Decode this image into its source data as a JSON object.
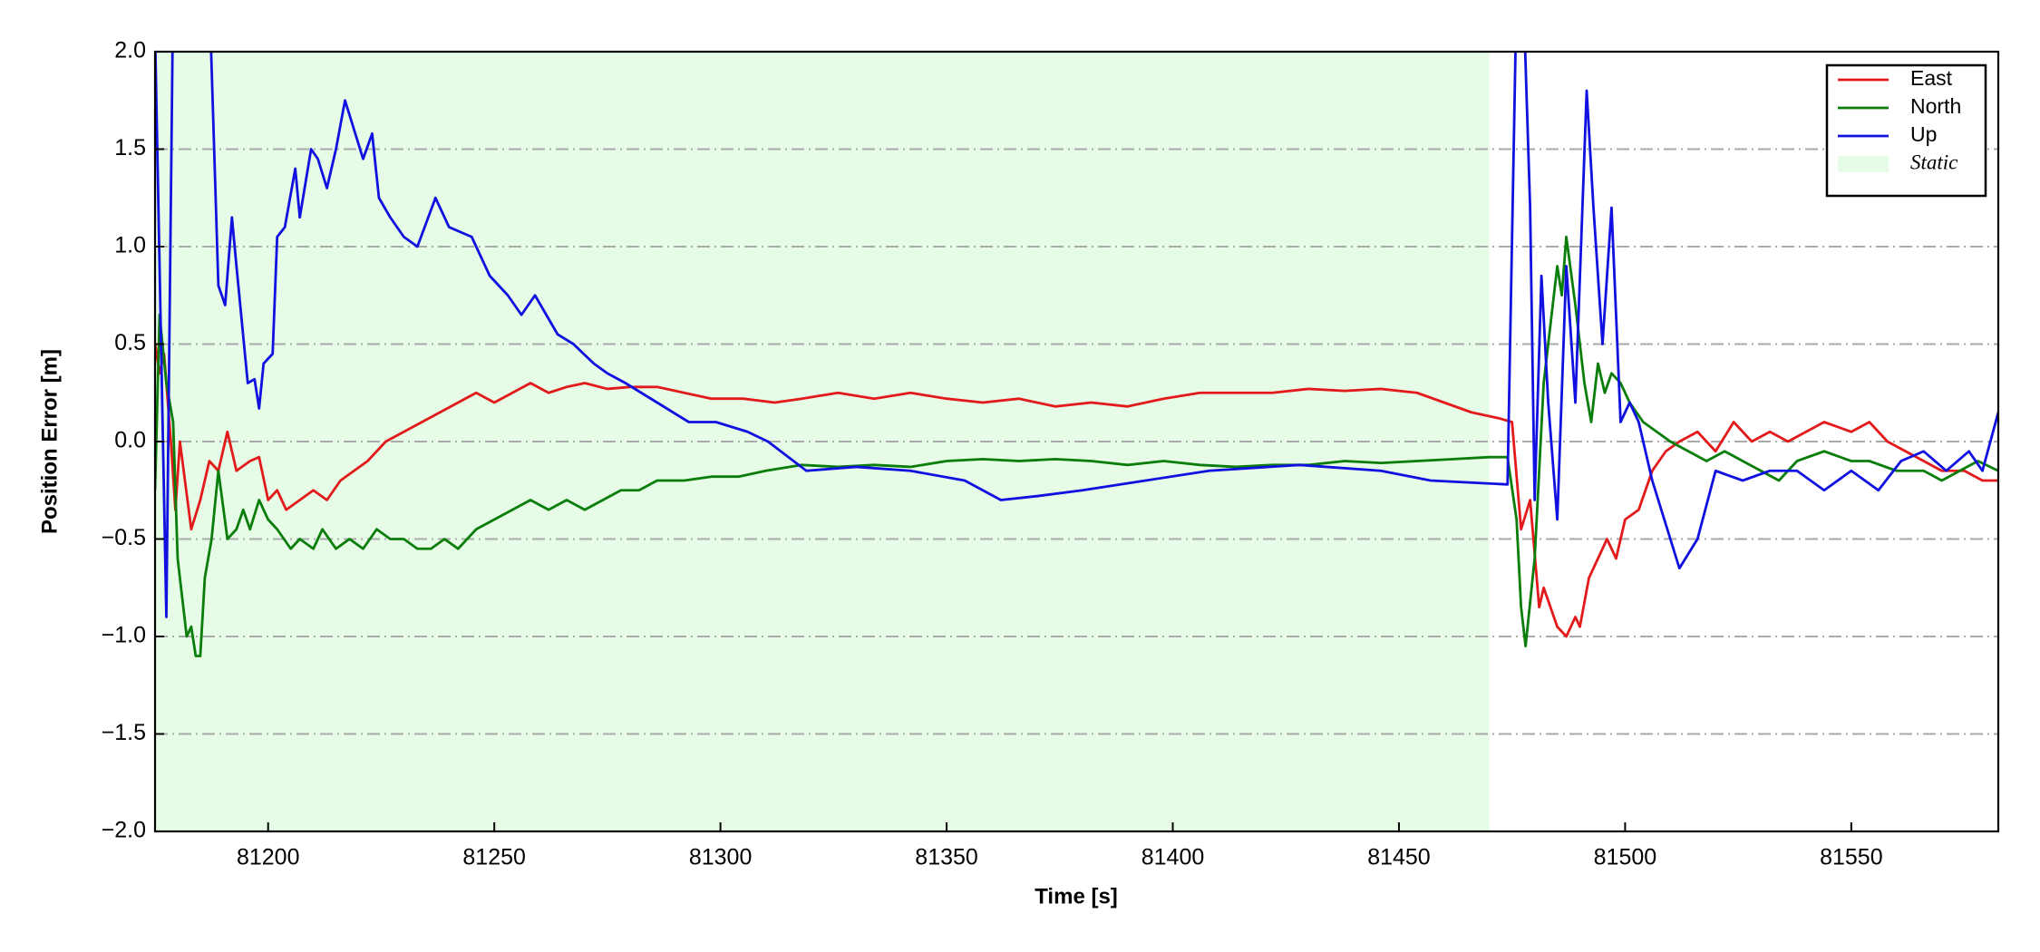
{
  "chart_data": {
    "type": "line",
    "xlabel": "Time [s]",
    "ylabel": "Position Error [m]",
    "xlim": [
      81175,
      81582.5
    ],
    "ylim": [
      -2.0,
      2.0
    ],
    "xticks": [
      81200,
      81250,
      81300,
      81350,
      81400,
      81450,
      81500,
      81550
    ],
    "yticks": [
      {
        "value": -2.0,
        "label": "−2.0"
      },
      {
        "value": -1.5,
        "label": "−1.5"
      },
      {
        "value": -1.0,
        "label": "−1.0"
      },
      {
        "value": -0.5,
        "label": "−0.5"
      },
      {
        "value": 0.0,
        "label": "0.0"
      },
      {
        "value": 0.5,
        "label": "0.5"
      },
      {
        "value": 1.0,
        "label": "1.0"
      },
      {
        "value": 1.5,
        "label": "1.5"
      },
      {
        "value": 2.0,
        "label": "2.0"
      }
    ],
    "grid": true,
    "legend": "upper right",
    "spans": [
      {
        "name": "Static",
        "start": 81175,
        "end": 81470,
        "color": "#e6fce6"
      }
    ],
    "series": [
      {
        "name": "East",
        "color": "#e31a1c",
        "x": [
          81175,
          81176,
          81177,
          81178.5,
          81179.5,
          81180.5,
          81183,
          81185,
          81187,
          81189,
          81191,
          81193,
          81196,
          81198,
          81200,
          81202,
          81204,
          81207,
          81210,
          81213,
          81216,
          81219,
          81222,
          81226,
          81230,
          81234,
          81238,
          81242,
          81246,
          81250,
          81254,
          81258,
          81262,
          81266,
          81270,
          81275,
          81280,
          81286,
          81292,
          81298,
          81305,
          81312,
          81318,
          81326,
          81334,
          81342,
          81350,
          81358,
          81366,
          81374,
          81382,
          81390,
          81398,
          81406,
          81414,
          81422,
          81430,
          81438,
          81446,
          81454,
          81460,
          81466,
          81472,
          81475,
          81477,
          81479,
          81481,
          81482,
          81485,
          81487,
          81489,
          81490,
          81492,
          81494,
          81496,
          81498,
          81500,
          81503,
          81506,
          81509,
          81512,
          81516,
          81520,
          81524,
          81528,
          81532,
          81536,
          81540,
          81544,
          81550,
          81554,
          81558,
          81562,
          81566,
          81570,
          81575,
          81579,
          81582.5
        ],
        "values": [
          0.5,
          0.35,
          0.45,
          0.0,
          -0.35,
          0.0,
          -0.45,
          -0.3,
          -0.1,
          -0.15,
          0.05,
          -0.15,
          -0.1,
          -0.08,
          -0.3,
          -0.25,
          -0.35,
          -0.3,
          -0.25,
          -0.3,
          -0.2,
          -0.15,
          -0.1,
          0.0,
          0.05,
          0.1,
          0.15,
          0.2,
          0.25,
          0.2,
          0.25,
          0.3,
          0.25,
          0.28,
          0.3,
          0.27,
          0.28,
          0.28,
          0.25,
          0.22,
          0.22,
          0.2,
          0.22,
          0.25,
          0.22,
          0.25,
          0.22,
          0.2,
          0.22,
          0.18,
          0.2,
          0.18,
          0.22,
          0.25,
          0.25,
          0.25,
          0.27,
          0.26,
          0.27,
          0.25,
          0.2,
          0.15,
          0.12,
          0.1,
          -0.45,
          -0.3,
          -0.85,
          -0.75,
          -0.95,
          -1.0,
          -0.9,
          -0.95,
          -0.7,
          -0.6,
          -0.5,
          -0.6,
          -0.4,
          -0.35,
          -0.15,
          -0.05,
          0.0,
          0.05,
          -0.05,
          0.1,
          0.0,
          0.05,
          0.0,
          0.05,
          0.1,
          0.05,
          0.1,
          0.0,
          -0.05,
          -0.1,
          -0.15,
          -0.15,
          -0.2,
          -0.2
        ]
      },
      {
        "name": "North",
        "color": "#0a7d0a",
        "x": [
          81175,
          81176,
          81177.5,
          81179,
          81180,
          81181,
          81182,
          81183,
          81184,
          81185,
          81186,
          81187.5,
          81189,
          81191,
          81193,
          81194.5,
          81196,
          81198,
          81200,
          81202,
          81205,
          81207,
          81210,
          81212,
          81215,
          81218,
          81221,
          81224,
          81227,
          81230,
          81233,
          81236,
          81239,
          81242,
          81246,
          81250,
          81254,
          81258,
          81262,
          81266,
          81270,
          81274,
          81278,
          81282,
          81286,
          81292,
          81298,
          81304,
          81310,
          81318,
          81326,
          81334,
          81342,
          81350,
          81358,
          81366,
          81374,
          81382,
          81390,
          81398,
          81406,
          81414,
          81422,
          81430,
          81438,
          81446,
          81454,
          81462,
          81470,
          81474,
          81476,
          81477,
          81478,
          81480,
          81482,
          81484,
          81485,
          81486,
          81487,
          81489,
          81491,
          81492.5,
          81494,
          81495.5,
          81497,
          81499,
          81501,
          81504,
          81507,
          81510,
          81514,
          81518,
          81522,
          81526,
          81530,
          81534,
          81538,
          81544,
          81550,
          81554,
          81560,
          81566,
          81570,
          81574,
          81578,
          81582.5
        ],
        "values": [
          -0.25,
          0.65,
          0.3,
          0.1,
          -0.6,
          -0.8,
          -1.0,
          -0.95,
          -1.1,
          -1.1,
          -0.7,
          -0.5,
          -0.15,
          -0.5,
          -0.45,
          -0.35,
          -0.45,
          -0.3,
          -0.4,
          -0.45,
          -0.55,
          -0.5,
          -0.55,
          -0.45,
          -0.55,
          -0.5,
          -0.55,
          -0.45,
          -0.5,
          -0.5,
          -0.55,
          -0.55,
          -0.5,
          -0.55,
          -0.45,
          -0.4,
          -0.35,
          -0.3,
          -0.35,
          -0.3,
          -0.35,
          -0.3,
          -0.25,
          -0.25,
          -0.2,
          -0.2,
          -0.18,
          -0.18,
          -0.15,
          -0.12,
          -0.13,
          -0.12,
          -0.13,
          -0.1,
          -0.09,
          -0.1,
          -0.09,
          -0.1,
          -0.12,
          -0.1,
          -0.12,
          -0.13,
          -0.12,
          -0.12,
          -0.1,
          -0.11,
          -0.1,
          -0.09,
          -0.08,
          -0.08,
          -0.4,
          -0.85,
          -1.05,
          -0.6,
          0.3,
          0.7,
          0.9,
          0.75,
          1.05,
          0.7,
          0.3,
          0.1,
          0.4,
          0.25,
          0.35,
          0.3,
          0.2,
          0.1,
          0.05,
          0.0,
          -0.05,
          -0.1,
          -0.05,
          -0.1,
          -0.15,
          -0.2,
          -0.1,
          -0.05,
          -0.1,
          -0.1,
          -0.15,
          -0.15,
          -0.2,
          -0.15,
          -0.1,
          -0.15
        ]
      },
      {
        "name": "Up",
        "color": "#1010e0",
        "x": [
          81175,
          81177.5,
          81179,
          81187,
          81189,
          81190.5,
          81192,
          81193,
          81195.5,
          81197,
          81198,
          81199,
          81201,
          81202,
          81203.7,
          81206,
          81207,
          81209.5,
          81211,
          81213,
          81215,
          81217,
          81219,
          81221,
          81223,
          81224.5,
          81227,
          81230,
          81233,
          81237,
          81240,
          81245,
          81249,
          81253,
          81256,
          81259,
          81264,
          81267.5,
          81272,
          81275,
          81279,
          81286,
          81293,
          81299,
          81306,
          81310.5,
          81319,
          81330,
          81342,
          81354,
          81362,
          81370,
          81380,
          81394,
          81408,
          81428,
          81446,
          81457,
          81474,
          81476,
          81477.5,
          81479,
          81480,
          81481.5,
          81483,
          81485,
          81487,
          81489,
          81491.5,
          81493,
          81495,
          81497,
          81499,
          81501,
          81503,
          81506,
          81510,
          81512,
          81516,
          81520,
          81526,
          81532,
          81538,
          81544,
          81550,
          81556,
          81561,
          81566,
          81571,
          81576,
          81579,
          81582.5
        ],
        "values": [
          2.1,
          -0.9,
          2.3,
          2.3,
          0.8,
          0.7,
          1.15,
          0.9,
          0.3,
          0.32,
          0.17,
          0.4,
          0.45,
          1.05,
          1.1,
          1.4,
          1.15,
          1.5,
          1.45,
          1.3,
          1.5,
          1.75,
          1.6,
          1.45,
          1.58,
          1.25,
          1.15,
          1.05,
          1.0,
          1.25,
          1.1,
          1.05,
          0.85,
          0.75,
          0.65,
          0.75,
          0.55,
          0.5,
          0.4,
          0.35,
          0.3,
          0.2,
          0.1,
          0.1,
          0.05,
          0.0,
          -0.15,
          -0.13,
          -0.15,
          -0.2,
          -0.3,
          -0.28,
          -0.25,
          -0.2,
          -0.15,
          -0.12,
          -0.15,
          -0.2,
          -0.22,
          2.3,
          2.3,
          1.2,
          -0.3,
          0.85,
          0.2,
          -0.4,
          0.9,
          0.2,
          1.8,
          1.2,
          0.5,
          1.2,
          0.1,
          0.2,
          0.1,
          -0.2,
          -0.5,
          -0.65,
          -0.5,
          -0.15,
          -0.2,
          -0.15,
          -0.15,
          -0.25,
          -0.15,
          -0.25,
          -0.1,
          -0.05,
          -0.15,
          -0.05,
          -0.15,
          0.15
        ]
      }
    ]
  }
}
